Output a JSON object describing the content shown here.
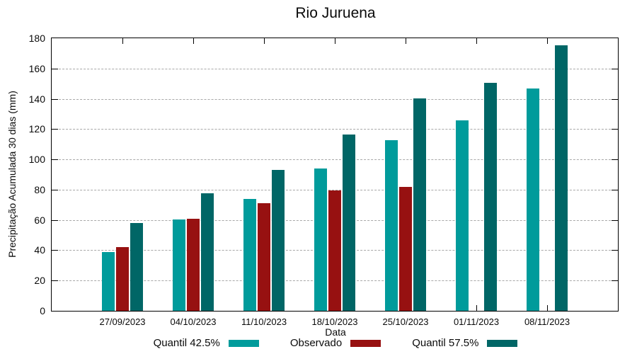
{
  "chart_data": {
    "type": "bar",
    "title": "Rio Juruena",
    "xlabel": "Data",
    "ylabel": "Precipitação Acumulada 30 dias (mm)",
    "categories": [
      "27/09/2023",
      "04/10/2023",
      "11/10/2023",
      "18/10/2023",
      "25/10/2023",
      "01/11/2023",
      "08/11/2023"
    ],
    "series": [
      {
        "name": "Quantil 42.5%",
        "color": "#009B9B",
        "values": [
          39,
          60.5,
          74,
          94,
          112.5,
          126,
          147
        ]
      },
      {
        "name": "Observado",
        "color": "#971111",
        "values": [
          42,
          61,
          71,
          79.5,
          82,
          null,
          null
        ]
      },
      {
        "name": "Quantil 57.5%",
        "color": "#006666",
        "values": [
          58,
          77.5,
          93,
          116.5,
          140.5,
          150.5,
          175.5
        ]
      }
    ],
    "ylim": [
      0,
      180
    ],
    "ytick_step": 20,
    "grid": true,
    "legend_position": "bottom",
    "axis_color": "#000000",
    "grid_color": "#a8a8a8",
    "background_color": "#ffffff"
  }
}
